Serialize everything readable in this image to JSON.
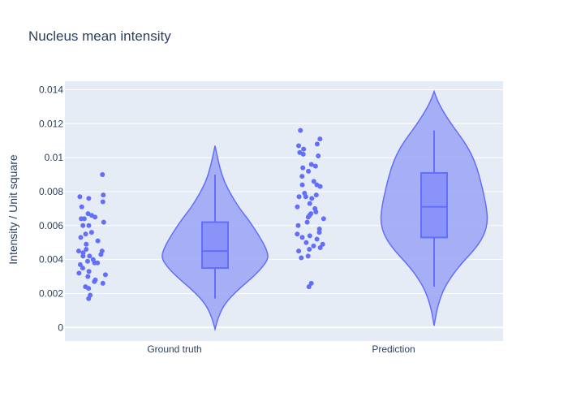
{
  "chart_data": {
    "type": "violin",
    "title": "Nucleus mean intensity",
    "xlabel": "",
    "ylabel": "Intensity / Unit square",
    "categories": [
      "Ground truth",
      "Prediction"
    ],
    "ylim": [
      -0.0008,
      0.0145
    ],
    "yticks": [
      0,
      0.002,
      0.004,
      0.006,
      0.008,
      0.01,
      0.012,
      0.014
    ],
    "ytick_labels": [
      "0",
      "0.002",
      "0.004",
      "0.006",
      "0.008",
      "0.01",
      "0.012",
      "0.014"
    ],
    "grid": true,
    "colors": {
      "plot_bg": "#e5ecf6",
      "grid": "#ffffff",
      "violin_fill": "#9ba3f5",
      "violin_line": "#636efa",
      "box_fill": "#8a93f7",
      "point": "#636efa",
      "text": "#2a3f5f"
    },
    "series": [
      {
        "name": "Ground truth",
        "box": {
          "q1": 0.0035,
          "median": 0.0045,
          "q3": 0.0062,
          "whisker_low": 0.0017,
          "whisker_high": 0.009
        },
        "violin_range": [
          -0.0001,
          0.0107
        ],
        "density": [
          [
            -0.0001,
            0.0
          ],
          [
            0.0006,
            0.06
          ],
          [
            0.0014,
            0.18
          ],
          [
            0.0022,
            0.42
          ],
          [
            0.003,
            0.72
          ],
          [
            0.0036,
            0.9
          ],
          [
            0.0041,
            1.0
          ],
          [
            0.0046,
            0.96
          ],
          [
            0.0052,
            0.86
          ],
          [
            0.0058,
            0.74
          ],
          [
            0.0064,
            0.61
          ],
          [
            0.007,
            0.46
          ],
          [
            0.0078,
            0.3
          ],
          [
            0.0086,
            0.17
          ],
          [
            0.0094,
            0.09
          ],
          [
            0.0101,
            0.04
          ],
          [
            0.0107,
            0.0
          ]
        ],
        "points": [
          0.009,
          0.0078,
          0.0077,
          0.0076,
          0.0074,
          0.0071,
          0.0067,
          0.0066,
          0.0065,
          0.0064,
          0.0064,
          0.0062,
          0.006,
          0.006,
          0.0056,
          0.0055,
          0.0053,
          0.0051,
          0.0049,
          0.0046,
          0.0045,
          0.0045,
          0.0044,
          0.0043,
          0.0042,
          0.0042,
          0.004,
          0.0039,
          0.0038,
          0.0038,
          0.0037,
          0.0035,
          0.0033,
          0.0032,
          0.0031,
          0.003,
          0.0028,
          0.0027,
          0.0026,
          0.0024,
          0.0023,
          0.0019,
          0.0017
        ]
      },
      {
        "name": "Prediction",
        "box": {
          "q1": 0.0053,
          "median": 0.0071,
          "q3": 0.0091,
          "whisker_low": 0.0024,
          "whisker_high": 0.0116
        },
        "violin_range": [
          0.0001,
          0.0139
        ],
        "density": [
          [
            0.0001,
            0.0
          ],
          [
            0.0012,
            0.06
          ],
          [
            0.0022,
            0.17
          ],
          [
            0.003,
            0.32
          ],
          [
            0.0038,
            0.52
          ],
          [
            0.0046,
            0.76
          ],
          [
            0.0054,
            0.93
          ],
          [
            0.0062,
            1.0
          ],
          [
            0.007,
            0.98
          ],
          [
            0.0078,
            0.93
          ],
          [
            0.0086,
            0.87
          ],
          [
            0.0094,
            0.8
          ],
          [
            0.0102,
            0.7
          ],
          [
            0.011,
            0.55
          ],
          [
            0.0118,
            0.36
          ],
          [
            0.0126,
            0.19
          ],
          [
            0.0133,
            0.07
          ],
          [
            0.0139,
            0.0
          ]
        ],
        "points": [
          0.0116,
          0.0111,
          0.0108,
          0.0107,
          0.0105,
          0.0103,
          0.0101,
          0.0102,
          0.0096,
          0.0095,
          0.0094,
          0.0092,
          0.0089,
          0.0086,
          0.0084,
          0.0084,
          0.0083,
          0.0079,
          0.0078,
          0.0077,
          0.0077,
          0.0076,
          0.0073,
          0.0071,
          0.007,
          0.0068,
          0.0067,
          0.0066,
          0.0065,
          0.0064,
          0.0062,
          0.006,
          0.0058,
          0.0056,
          0.0055,
          0.0054,
          0.0053,
          0.0052,
          0.005,
          0.0049,
          0.0048,
          0.0047,
          0.0046,
          0.0045,
          0.0042,
          0.0041,
          0.0026,
          0.0024
        ]
      }
    ]
  }
}
